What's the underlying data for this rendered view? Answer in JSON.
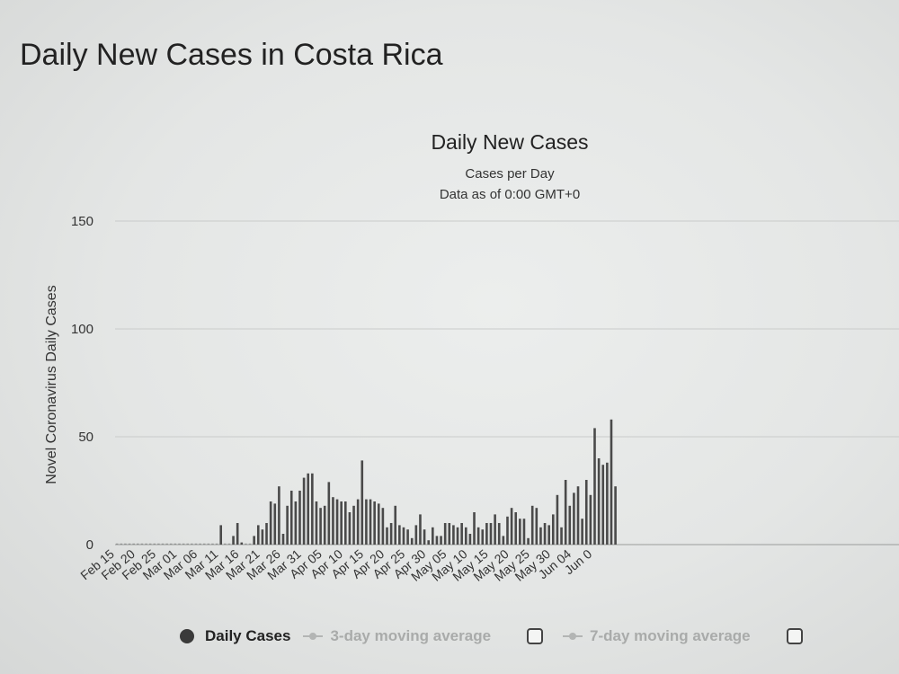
{
  "page_title": "Daily New Cases in Costa Rica",
  "chart_data": {
    "type": "bar",
    "title": "Daily New Cases",
    "subtitle": "Cases per Day",
    "subtitle2": "Data as of 0:00 GMT+0",
    "ylabel": "Novel Coronavirus Daily Cases",
    "xlabel": "",
    "ylim": [
      0,
      150
    ],
    "yticks": [
      0,
      50,
      100,
      150
    ],
    "grid": true,
    "bar_color": "#4a4a4a",
    "start_date": "Feb 15",
    "xtick_labels": [
      "Feb 15",
      "Feb 20",
      "Feb 25",
      "Mar 01",
      "Mar 06",
      "Mar 11",
      "Mar 16",
      "Mar 21",
      "Mar 26",
      "Mar 31",
      "Apr 05",
      "Apr 10",
      "Apr 15",
      "Apr 20",
      "Apr 25",
      "Apr 30",
      "May 05",
      "May 10",
      "May 15",
      "May 20",
      "May 25",
      "May 30",
      "Jun 04",
      "Jun 0"
    ],
    "series": [
      {
        "name": "Daily Cases",
        "values": [
          0,
          0,
          0,
          0,
          0,
          0,
          0,
          0,
          0,
          0,
          0,
          0,
          0,
          0,
          0,
          0,
          0,
          0,
          0,
          0,
          0,
          0,
          0,
          0,
          0,
          9,
          0,
          0,
          4,
          10,
          1,
          0,
          0,
          4,
          9,
          7,
          10,
          20,
          19,
          27,
          5,
          18,
          25,
          20,
          25,
          31,
          33,
          33,
          20,
          17,
          18,
          29,
          22,
          21,
          20,
          20,
          15,
          18,
          21,
          39,
          21,
          21,
          20,
          19,
          17,
          8,
          10,
          18,
          9,
          8,
          7,
          3,
          9,
          14,
          7,
          2,
          8,
          4,
          4,
          10,
          10,
          9,
          8,
          10,
          8,
          5,
          15,
          8,
          7,
          10,
          10,
          14,
          10,
          4,
          13,
          17,
          15,
          12,
          12,
          3,
          18,
          17,
          8,
          10,
          9,
          14,
          23,
          8,
          30,
          18,
          24,
          27,
          12,
          30,
          23,
          54,
          40,
          37,
          38,
          58,
          27
        ],
        "color": "#4a4a4a"
      },
      {
        "name": "3-day moving average",
        "values": [],
        "color": "#b3b5b4"
      },
      {
        "name": "7-day moving average",
        "values": [],
        "color": "#b3b5b4"
      }
    ],
    "legend": [
      {
        "label": "Daily Cases",
        "style": "dot"
      },
      {
        "label": "3-day moving average",
        "style": "line-dot"
      },
      {
        "label": "7-day moving average",
        "style": "line-dot"
      }
    ],
    "legend_position": "bottom"
  }
}
